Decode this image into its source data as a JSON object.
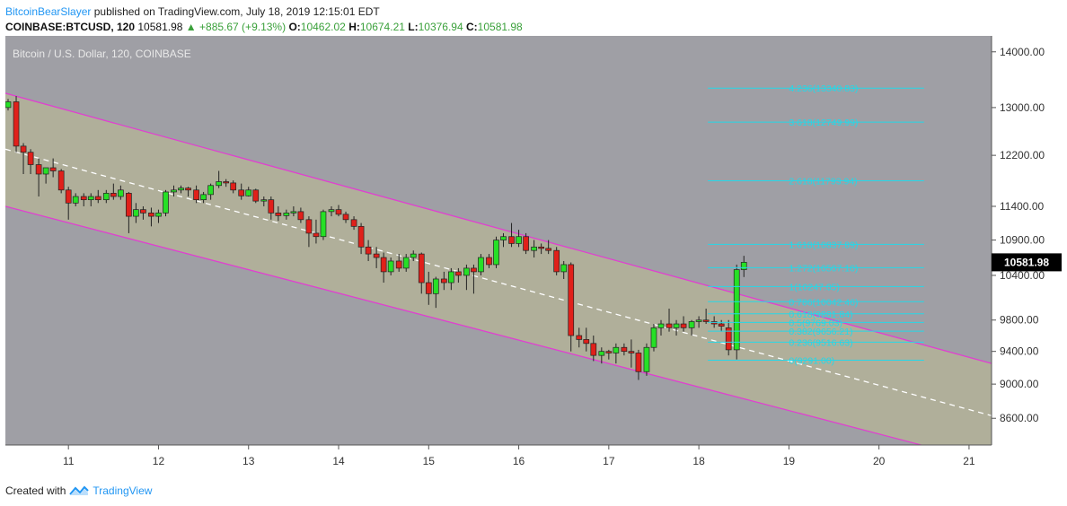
{
  "header": {
    "author": "BitcoinBearSlayer",
    "published_text": "published on TradingView.com, July 18, 2019 12:15:01 EDT"
  },
  "ohlc": {
    "symbol": "COINBASE:BTCUSD, 120",
    "last": "10581.98",
    "change": "+885.67 (+9.13%)",
    "o_label": "O:",
    "o_value": "10462.02",
    "h_label": "H:",
    "h_value": "10674.21",
    "l_label": "L:",
    "l_value": "10376.94",
    "c_label": "C:",
    "c_value": "10581.98"
  },
  "footer": {
    "created_with": "Created with",
    "brand": "TradingView"
  },
  "chart_data": {
    "type": "candlestick",
    "title": "Bitcoin / U.S. Dollar, 120, COINBASE",
    "price_label": "10581.98",
    "y_scale": "log",
    "ylim": [
      8300,
      14300
    ],
    "y_ticks": [
      "14000.00",
      "13000.00",
      "12200.00",
      "11400.00",
      "10900.00",
      "10400.00",
      "9800.00",
      "9400.00",
      "9000.00",
      "8600.00"
    ],
    "x_ticks": [
      "11",
      "12",
      "13",
      "14",
      "15",
      "16",
      "17",
      "18",
      "19",
      "20",
      "21"
    ],
    "xlim": [
      10.3,
      21.25
    ],
    "candles": [
      {
        "t": 10.33,
        "o": 13000,
        "h": 13150,
        "l": 12950,
        "c": 13100
      },
      {
        "t": 10.42,
        "o": 13100,
        "h": 13200,
        "l": 12250,
        "c": 12350
      },
      {
        "t": 10.5,
        "o": 12350,
        "h": 12400,
        "l": 11900,
        "c": 12250
      },
      {
        "t": 10.58,
        "o": 12250,
        "h": 12300,
        "l": 11900,
        "c": 12050
      },
      {
        "t": 10.67,
        "o": 12050,
        "h": 12150,
        "l": 11550,
        "c": 11900
      },
      {
        "t": 10.75,
        "o": 11900,
        "h": 12000,
        "l": 11750,
        "c": 12000
      },
      {
        "t": 10.83,
        "o": 12000,
        "h": 12150,
        "l": 11850,
        "c": 11950
      },
      {
        "t": 10.92,
        "o": 11950,
        "h": 11980,
        "l": 11600,
        "c": 11650
      },
      {
        "t": 11.0,
        "o": 11650,
        "h": 11700,
        "l": 11200,
        "c": 11450
      },
      {
        "t": 11.08,
        "o": 11450,
        "h": 11600,
        "l": 11400,
        "c": 11550
      },
      {
        "t": 11.17,
        "o": 11550,
        "h": 11600,
        "l": 11400,
        "c": 11500
      },
      {
        "t": 11.25,
        "o": 11500,
        "h": 11600,
        "l": 11400,
        "c": 11550
      },
      {
        "t": 11.33,
        "o": 11550,
        "h": 11650,
        "l": 11450,
        "c": 11500
      },
      {
        "t": 11.42,
        "o": 11500,
        "h": 11650,
        "l": 11450,
        "c": 11600
      },
      {
        "t": 11.5,
        "o": 11600,
        "h": 11750,
        "l": 11500,
        "c": 11550
      },
      {
        "t": 11.58,
        "o": 11550,
        "h": 11720,
        "l": 11500,
        "c": 11650
      },
      {
        "t": 11.67,
        "o": 11600,
        "h": 11620,
        "l": 11000,
        "c": 11250
      },
      {
        "t": 11.75,
        "o": 11250,
        "h": 11450,
        "l": 11150,
        "c": 11350
      },
      {
        "t": 11.83,
        "o": 11350,
        "h": 11400,
        "l": 11200,
        "c": 11300
      },
      {
        "t": 11.92,
        "o": 11300,
        "h": 11380,
        "l": 11100,
        "c": 11250
      },
      {
        "t": 12.0,
        "o": 11250,
        "h": 11350,
        "l": 11150,
        "c": 11300
      },
      {
        "t": 12.08,
        "o": 11300,
        "h": 11650,
        "l": 11250,
        "c": 11620
      },
      {
        "t": 12.17,
        "o": 11620,
        "h": 11720,
        "l": 11550,
        "c": 11650
      },
      {
        "t": 12.25,
        "o": 11650,
        "h": 11720,
        "l": 11600,
        "c": 11680
      },
      {
        "t": 12.33,
        "o": 11680,
        "h": 11700,
        "l": 11550,
        "c": 11650
      },
      {
        "t": 12.42,
        "o": 11650,
        "h": 11720,
        "l": 11450,
        "c": 11500
      },
      {
        "t": 12.5,
        "o": 11500,
        "h": 11620,
        "l": 11450,
        "c": 11580
      },
      {
        "t": 12.58,
        "o": 11580,
        "h": 11750,
        "l": 11500,
        "c": 11720
      },
      {
        "t": 12.67,
        "o": 11720,
        "h": 11950,
        "l": 11680,
        "c": 11780
      },
      {
        "t": 12.75,
        "o": 11780,
        "h": 11820,
        "l": 11700,
        "c": 11760
      },
      {
        "t": 12.83,
        "o": 11760,
        "h": 11800,
        "l": 11600,
        "c": 11650
      },
      {
        "t": 12.92,
        "o": 11650,
        "h": 11750,
        "l": 11500,
        "c": 11560
      },
      {
        "t": 13.0,
        "o": 11560,
        "h": 11700,
        "l": 11550,
        "c": 11650
      },
      {
        "t": 13.08,
        "o": 11650,
        "h": 11670,
        "l": 11450,
        "c": 11480
      },
      {
        "t": 13.17,
        "o": 11480,
        "h": 11550,
        "l": 11400,
        "c": 11500
      },
      {
        "t": 13.25,
        "o": 11500,
        "h": 11550,
        "l": 11200,
        "c": 11300
      },
      {
        "t": 13.33,
        "o": 11300,
        "h": 11400,
        "l": 11180,
        "c": 11260
      },
      {
        "t": 13.42,
        "o": 11260,
        "h": 11350,
        "l": 11200,
        "c": 11300
      },
      {
        "t": 13.5,
        "o": 11300,
        "h": 11400,
        "l": 11250,
        "c": 11320
      },
      {
        "t": 13.58,
        "o": 11320,
        "h": 11380,
        "l": 11150,
        "c": 11200
      },
      {
        "t": 13.67,
        "o": 11200,
        "h": 11250,
        "l": 10800,
        "c": 11000
      },
      {
        "t": 13.75,
        "o": 11000,
        "h": 11200,
        "l": 10850,
        "c": 10950
      },
      {
        "t": 13.83,
        "o": 10950,
        "h": 11350,
        "l": 10900,
        "c": 11320
      },
      {
        "t": 13.92,
        "o": 11320,
        "h": 11400,
        "l": 11250,
        "c": 11350
      },
      {
        "t": 14.0,
        "o": 11350,
        "h": 11420,
        "l": 11250,
        "c": 11280
      },
      {
        "t": 14.08,
        "o": 11280,
        "h": 11320,
        "l": 11150,
        "c": 11200
      },
      {
        "t": 14.17,
        "o": 11200,
        "h": 11250,
        "l": 11050,
        "c": 11100
      },
      {
        "t": 14.25,
        "o": 11100,
        "h": 11150,
        "l": 10700,
        "c": 10800
      },
      {
        "t": 14.33,
        "o": 10800,
        "h": 10900,
        "l": 10600,
        "c": 10700
      },
      {
        "t": 14.42,
        "o": 10700,
        "h": 10800,
        "l": 10500,
        "c": 10650
      },
      {
        "t": 14.5,
        "o": 10650,
        "h": 10720,
        "l": 10300,
        "c": 10450
      },
      {
        "t": 14.58,
        "o": 10450,
        "h": 10650,
        "l": 10400,
        "c": 10600
      },
      {
        "t": 14.67,
        "o": 10600,
        "h": 10700,
        "l": 10450,
        "c": 10500
      },
      {
        "t": 14.75,
        "o": 10500,
        "h": 10700,
        "l": 10450,
        "c": 10650
      },
      {
        "t": 14.83,
        "o": 10650,
        "h": 10750,
        "l": 10600,
        "c": 10700
      },
      {
        "t": 14.92,
        "o": 10700,
        "h": 10720,
        "l": 10150,
        "c": 10300
      },
      {
        "t": 15.0,
        "o": 10300,
        "h": 10450,
        "l": 10000,
        "c": 10150
      },
      {
        "t": 15.08,
        "o": 10150,
        "h": 10380,
        "l": 9960,
        "c": 10350
      },
      {
        "t": 15.17,
        "o": 10350,
        "h": 10450,
        "l": 10200,
        "c": 10300
      },
      {
        "t": 15.25,
        "o": 10300,
        "h": 10500,
        "l": 10200,
        "c": 10450
      },
      {
        "t": 15.33,
        "o": 10450,
        "h": 10500,
        "l": 10300,
        "c": 10400
      },
      {
        "t": 15.42,
        "o": 10400,
        "h": 10550,
        "l": 10200,
        "c": 10500
      },
      {
        "t": 15.5,
        "o": 10500,
        "h": 10550,
        "l": 10150,
        "c": 10450
      },
      {
        "t": 15.58,
        "o": 10450,
        "h": 10700,
        "l": 10400,
        "c": 10650
      },
      {
        "t": 15.67,
        "o": 10650,
        "h": 10700,
        "l": 10500,
        "c": 10550
      },
      {
        "t": 15.75,
        "o": 10550,
        "h": 10950,
        "l": 10500,
        "c": 10900
      },
      {
        "t": 15.83,
        "o": 10900,
        "h": 11000,
        "l": 10800,
        "c": 10950
      },
      {
        "t": 15.92,
        "o": 10950,
        "h": 11150,
        "l": 10800,
        "c": 10850
      },
      {
        "t": 16.0,
        "o": 10850,
        "h": 11050,
        "l": 10800,
        "c": 10950
      },
      {
        "t": 16.08,
        "o": 10950,
        "h": 11000,
        "l": 10700,
        "c": 10750
      },
      {
        "t": 16.17,
        "o": 10750,
        "h": 10900,
        "l": 10650,
        "c": 10800
      },
      {
        "t": 16.25,
        "o": 10800,
        "h": 10850,
        "l": 10700,
        "c": 10780
      },
      {
        "t": 16.33,
        "o": 10780,
        "h": 10900,
        "l": 10700,
        "c": 10750
      },
      {
        "t": 16.42,
        "o": 10750,
        "h": 10800,
        "l": 10400,
        "c": 10450
      },
      {
        "t": 16.5,
        "o": 10450,
        "h": 10600,
        "l": 10350,
        "c": 10550
      },
      {
        "t": 16.58,
        "o": 10550,
        "h": 10580,
        "l": 9400,
        "c": 9600
      },
      {
        "t": 16.67,
        "o": 9600,
        "h": 9700,
        "l": 9450,
        "c": 9550
      },
      {
        "t": 16.75,
        "o": 9550,
        "h": 9700,
        "l": 9400,
        "c": 9500
      },
      {
        "t": 16.83,
        "o": 9500,
        "h": 9600,
        "l": 9280,
        "c": 9350
      },
      {
        "t": 16.92,
        "o": 9350,
        "h": 9450,
        "l": 9250,
        "c": 9400
      },
      {
        "t": 17.0,
        "o": 9400,
        "h": 9420,
        "l": 9300,
        "c": 9380
      },
      {
        "t": 17.08,
        "o": 9380,
        "h": 9500,
        "l": 9250,
        "c": 9450
      },
      {
        "t": 17.17,
        "o": 9450,
        "h": 9500,
        "l": 9350,
        "c": 9400
      },
      {
        "t": 17.25,
        "o": 9400,
        "h": 9550,
        "l": 9200,
        "c": 9380
      },
      {
        "t": 17.33,
        "o": 9380,
        "h": 9420,
        "l": 9050,
        "c": 9150
      },
      {
        "t": 17.42,
        "o": 9150,
        "h": 9500,
        "l": 9100,
        "c": 9450
      },
      {
        "t": 17.5,
        "o": 9450,
        "h": 9750,
        "l": 9400,
        "c": 9700
      },
      {
        "t": 17.58,
        "o": 9700,
        "h": 9800,
        "l": 9600,
        "c": 9750
      },
      {
        "t": 17.67,
        "o": 9750,
        "h": 9950,
        "l": 9650,
        "c": 9700
      },
      {
        "t": 17.75,
        "o": 9700,
        "h": 9800,
        "l": 9600,
        "c": 9750
      },
      {
        "t": 17.83,
        "o": 9750,
        "h": 9850,
        "l": 9650,
        "c": 9700
      },
      {
        "t": 17.92,
        "o": 9700,
        "h": 9800,
        "l": 9600,
        "c": 9780
      },
      {
        "t": 18.0,
        "o": 9780,
        "h": 9850,
        "l": 9700,
        "c": 9800
      },
      {
        "t": 18.08,
        "o": 9800,
        "h": 9950,
        "l": 9750,
        "c": 9780
      },
      {
        "t": 18.17,
        "o": 9780,
        "h": 9850,
        "l": 9700,
        "c": 9750
      },
      {
        "t": 18.25,
        "o": 9750,
        "h": 9800,
        "l": 9650,
        "c": 9720
      },
      {
        "t": 18.33,
        "o": 9700,
        "h": 9800,
        "l": 9350,
        "c": 9420
      },
      {
        "t": 18.42,
        "o": 9420,
        "h": 10550,
        "l": 9300,
        "c": 10480
      },
      {
        "t": 18.5,
        "o": 10480,
        "h": 10674,
        "l": 10377,
        "c": 10582
      }
    ],
    "up_color": "#26e026",
    "down_color": "#e0201a",
    "channel_color": "#e040d0",
    "fib_color": "#25d8e8",
    "bg_color": "#9f9fa5",
    "channel_fill": "#b5b497",
    "channel": {
      "upper": [
        [
          10.3,
          13250
        ],
        [
          21.25,
          9250
        ]
      ],
      "lower": [
        [
          10.3,
          11400
        ],
        [
          21.25,
          8100
        ]
      ],
      "mid": [
        [
          10.3,
          12300
        ],
        [
          21.25,
          8630
        ]
      ]
    },
    "fib_levels": [
      {
        "label": "4.236(13340.83)",
        "value": 13340.83
      },
      {
        "label": "3.618(12749.99)",
        "value": 12749.99
      },
      {
        "label": "2.618(11793.94)",
        "value": 11793.94
      },
      {
        "label": "1.618(10837.89)",
        "value": 10837.89
      },
      {
        "label": "1.272(10507.10)",
        "value": 10507.1
      },
      {
        "label": "1(10247.05)",
        "value": 10247.05
      },
      {
        "label": "0.786(10042.46)",
        "value": 10042.46
      },
      {
        "label": "0.618(9881.84)",
        "value": 9881.84
      },
      {
        "label": "0.5(9769.03)",
        "value": 9769.03
      },
      {
        "label": "0.382(9656.21)",
        "value": 9656.21
      },
      {
        "label": "0.236(9516.63)",
        "value": 9516.63
      },
      {
        "label": "0(9291.00)",
        "value": 9291.0
      }
    ],
    "fib_x_range": [
      18.1,
      20.5
    ],
    "fib_label_x": 19.0
  }
}
